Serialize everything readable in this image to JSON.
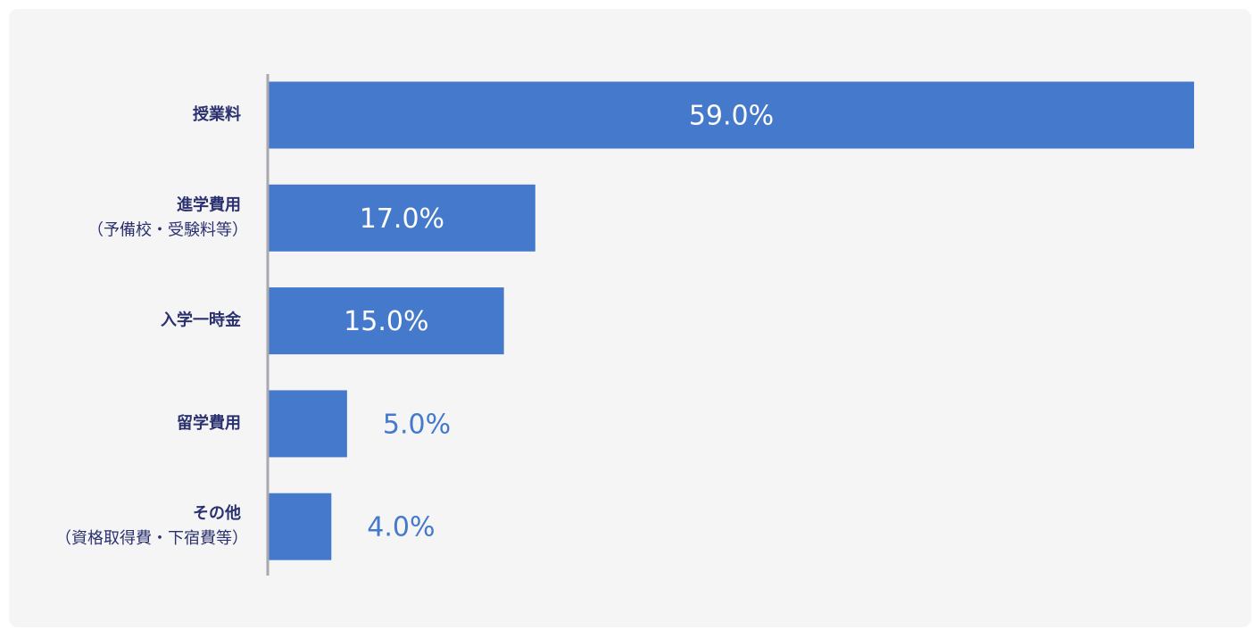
{
  "chart_data": {
    "type": "bar",
    "orientation": "horizontal",
    "categories": [
      [
        "授業料"
      ],
      [
        "進学費用",
        "（予備校・受験料等）"
      ],
      [
        "入学一時金"
      ],
      [
        "留学費用"
      ],
      [
        "その他",
        "（資格取得費・下宿費等）"
      ]
    ],
    "values": [
      59,
      17,
      15,
      5,
      4
    ],
    "value_labels": [
      "59.0%",
      "17.0%",
      "15.0%",
      "5.0%",
      "4.0%"
    ],
    "color": "#4479cc"
  }
}
